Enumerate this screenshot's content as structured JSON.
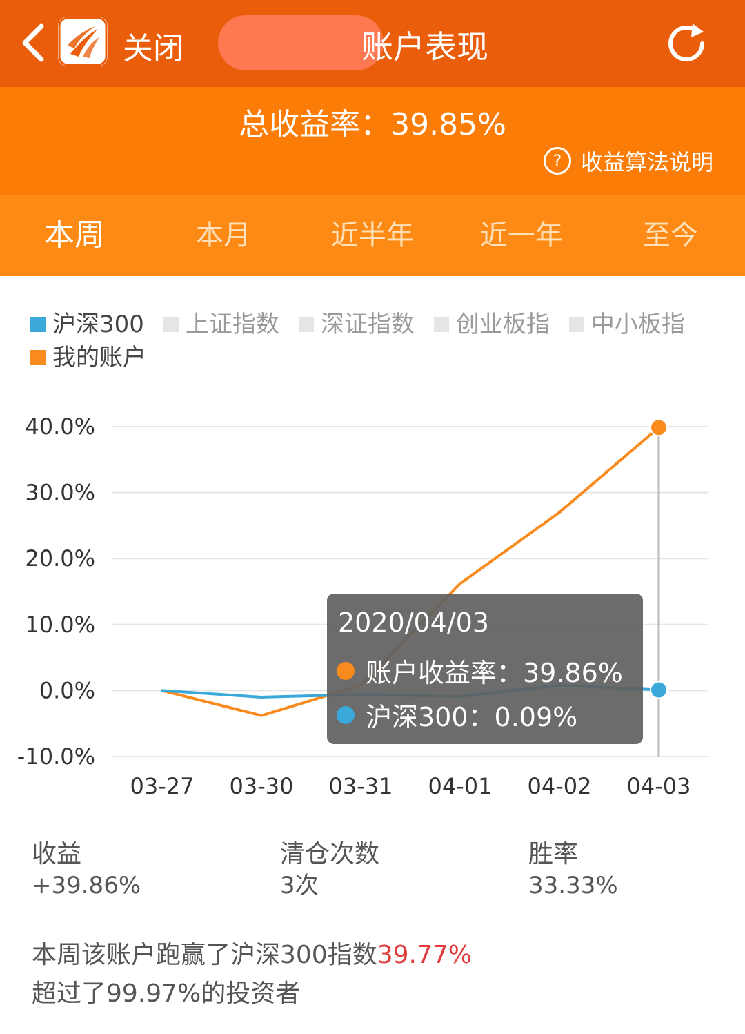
{
  "header": {
    "close_label": "关闭",
    "title": "账户表现",
    "icons": [
      "back-icon",
      "app-logo-icon",
      "refresh-icon"
    ]
  },
  "summary": {
    "total_return_text": "总收益率：39.85%",
    "help_label": "收益算法说明"
  },
  "tabs": [
    {
      "label": "本周",
      "active": true
    },
    {
      "label": "本月",
      "active": false
    },
    {
      "label": "近半年",
      "active": false
    },
    {
      "label": "近一年",
      "active": false
    },
    {
      "label": "至今",
      "active": false
    }
  ],
  "legend": [
    {
      "label": "沪深300",
      "color": "#3aa8d8",
      "on": true
    },
    {
      "label": "上证指数",
      "color": "#e5e5e5",
      "on": false
    },
    {
      "label": "深证指数",
      "color": "#e5e5e5",
      "on": false
    },
    {
      "label": "创业板指",
      "color": "#e5e5e5",
      "on": false
    },
    {
      "label": "中小板指",
      "color": "#e5e5e5",
      "on": false
    },
    {
      "label": "我的账户",
      "color": "#f98a1d",
      "on": true
    }
  ],
  "chart_data": {
    "type": "line",
    "x": [
      "03-27",
      "03-30",
      "03-31",
      "04-01",
      "04-02",
      "04-03"
    ],
    "y_ticks": [
      "40.0%",
      "30.0%",
      "20.0%",
      "10.0%",
      "0.0%",
      "-10.0%"
    ],
    "ylim": [
      -10,
      40
    ],
    "grid": true,
    "series": [
      {
        "name": "我的账户",
        "color": "#f98a1d",
        "values": [
          0.0,
          -3.8,
          0.8,
          16.2,
          27.0,
          39.86
        ]
      },
      {
        "name": "沪深300",
        "color": "#3aa8d8",
        "values": [
          0.0,
          -1.0,
          -0.6,
          -0.9,
          0.8,
          0.09
        ]
      }
    ],
    "tooltip": {
      "date": "2020/04/03",
      "account_text": "账户收益率：39.86%",
      "index_text": "沪深300：0.09%"
    }
  },
  "stats": [
    {
      "label": "收益",
      "value": "+39.86%"
    },
    {
      "label": "清仓次数",
      "value": "3次"
    },
    {
      "label": "胜率",
      "value": "33.33%"
    }
  ],
  "performance": {
    "line1_prefix": "本周该账户跑赢了沪深300指数",
    "line1_highlight": "39.77%",
    "line2": "超过了99.97%的投资者"
  }
}
